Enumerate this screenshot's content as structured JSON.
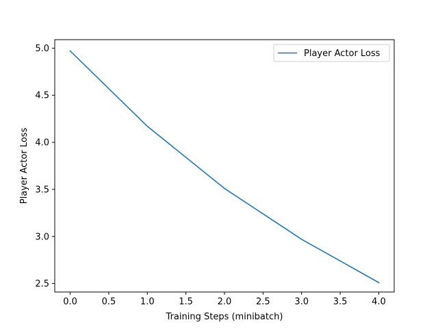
{
  "chart_data": {
    "type": "line",
    "title": "",
    "xlabel": "Training Steps (minibatch)",
    "ylabel": "Player Actor Loss",
    "x": [
      0,
      1,
      2,
      3,
      4
    ],
    "series": [
      {
        "name": "Player Actor Loss",
        "values": [
          4.97,
          4.17,
          3.51,
          2.97,
          2.51
        ],
        "color": "#1f77b4"
      }
    ],
    "xlim": [
      -0.2,
      4.2
    ],
    "ylim": [
      2.41,
      5.09
    ],
    "xticks": [
      0.0,
      0.5,
      1.0,
      1.5,
      2.0,
      2.5,
      3.0,
      3.5,
      4.0
    ],
    "xtick_labels": [
      "0.0",
      "0.5",
      "1.0",
      "1.5",
      "2.0",
      "2.5",
      "3.0",
      "3.5",
      "4.0"
    ],
    "yticks": [
      2.5,
      3.0,
      3.5,
      4.0,
      4.5,
      5.0
    ],
    "ytick_labels": [
      "2.5",
      "3.0",
      "3.5",
      "4.0",
      "4.5",
      "5.0"
    ],
    "grid": false,
    "legend": "top-right"
  }
}
